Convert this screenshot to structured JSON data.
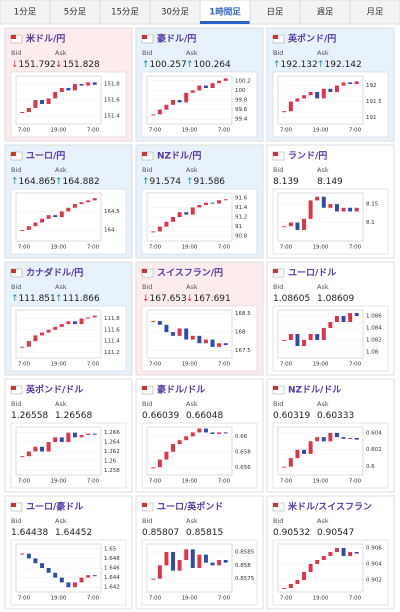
{
  "tabs": {
    "items": [
      "1分足",
      "5分足",
      "15分足",
      "30分足",
      "1時間足",
      "日足",
      "週足",
      "月足"
    ],
    "active": 4
  },
  "labels": {
    "bid": "Bid",
    "ask": "Ask"
  },
  "x_labels": [
    "7:00",
    "19:00",
    "7:00"
  ],
  "tiles": [
    {
      "name": "米ドル/円",
      "trend": "down",
      "arrow": "↓",
      "bid": 151.792,
      "ask": 151.828,
      "ylim": [
        151.3,
        151.9
      ],
      "yticks": [
        151.8,
        151.6,
        151.4
      ],
      "values": [
        151.45,
        151.5,
        151.6,
        151.55,
        151.62,
        151.7,
        151.75,
        151.72,
        151.8,
        151.78,
        151.82,
        151.79
      ]
    },
    {
      "name": "豪ドル/円",
      "trend": "up",
      "arrow": "↑",
      "bid": 100.257,
      "ask": 100.264,
      "ylim": [
        99.3,
        100.3
      ],
      "yticks": [
        100.2,
        100,
        99.8,
        99.6,
        99.4
      ],
      "values": [
        99.5,
        99.6,
        99.7,
        99.8,
        99.75,
        99.95,
        100.0,
        100.1,
        100.05,
        100.15,
        100.2,
        100.25
      ]
    },
    {
      "name": "英ポンド/円",
      "trend": "up",
      "arrow": "↑",
      "bid": 192.132,
      "ask": 192.142,
      "ylim": [
        190.8,
        192.3
      ],
      "yticks": [
        192,
        191.5,
        191
      ],
      "values": [
        191.2,
        191.5,
        191.6,
        191.7,
        191.8,
        191.6,
        191.9,
        191.8,
        192.0,
        192.1,
        192.05,
        192.13
      ]
    },
    {
      "name": "ユーロ/円",
      "trend": "up",
      "arrow": "↑",
      "bid": 164.865,
      "ask": 164.882,
      "ylim": [
        163.7,
        165.0
      ],
      "yticks": [
        164.5,
        164
      ],
      "values": [
        164.0,
        164.1,
        164.2,
        164.3,
        164.4,
        164.35,
        164.5,
        164.6,
        164.7,
        164.75,
        164.8,
        164.86
      ]
    },
    {
      "name": "NZドル/円",
      "trend": "up",
      "arrow": "↑",
      "bid": 91.574,
      "ask": 91.586,
      "ylim": [
        90.7,
        91.7
      ],
      "yticks": [
        91.6,
        91.4,
        91.2,
        91,
        90.8
      ],
      "values": [
        90.9,
        91.0,
        91.1,
        91.2,
        91.3,
        91.25,
        91.4,
        91.45,
        91.5,
        91.48,
        91.55,
        91.57
      ]
    },
    {
      "name": "ランド/円",
      "bid": 8.139,
      "ask": 8.149,
      "ylim": [
        8.05,
        8.18
      ],
      "yticks": [
        8.15,
        8.1
      ],
      "values": [
        8.09,
        8.1,
        8.08,
        8.11,
        8.16,
        8.17,
        8.14,
        8.15,
        8.13,
        8.14,
        8.13,
        8.14
      ]
    },
    {
      "name": "カナダドル/円",
      "trend": "up",
      "arrow": "↑",
      "bid": 111.851,
      "ask": 111.866,
      "ylim": [
        111.1,
        111.95
      ],
      "yticks": [
        111.8,
        111.6,
        111.4,
        111.2
      ],
      "values": [
        111.3,
        111.4,
        111.5,
        111.55,
        111.6,
        111.65,
        111.7,
        111.75,
        111.7,
        111.8,
        111.82,
        111.85
      ]
    },
    {
      "name": "スイスフラン/円",
      "trend": "down",
      "arrow": "↓",
      "bid": 167.653,
      "ask": 167.691,
      "ylim": [
        167.3,
        168.6
      ],
      "yticks": [
        168.5,
        168,
        167.5
      ],
      "values": [
        168.3,
        168.2,
        168.0,
        167.9,
        168.1,
        167.8,
        167.9,
        167.7,
        167.8,
        167.6,
        167.7,
        167.65
      ]
    },
    {
      "name": "ユーロ/ドル",
      "bid": 1.08605,
      "ask": 1.08609,
      "ylim": [
        1.079,
        1.087
      ],
      "yticks": [
        1.086,
        1.084,
        1.082,
        1.08
      ],
      "values": [
        1.082,
        1.083,
        1.081,
        1.082,
        1.083,
        1.082,
        1.084,
        1.085,
        1.086,
        1.085,
        1.0865,
        1.086
      ]
    },
    {
      "name": "英ポンド/ドル",
      "bid": 1.26558,
      "ask": 1.26568,
      "ylim": [
        1.257,
        1.2672
      ],
      "yticks": [
        1.266,
        1.264,
        1.262,
        1.26,
        1.258
      ],
      "values": [
        1.261,
        1.262,
        1.263,
        1.262,
        1.264,
        1.265,
        1.264,
        1.266,
        1.265,
        1.2655,
        1.2658,
        1.2656
      ]
    },
    {
      "name": "豪ドル/ドル",
      "bid": 0.66039,
      "ask": 0.66048,
      "ylim": [
        0.655,
        0.6612
      ],
      "yticks": [
        0.66,
        0.658,
        0.656
      ],
      "values": [
        0.656,
        0.657,
        0.658,
        0.659,
        0.6595,
        0.66,
        0.6605,
        0.661,
        0.6605,
        0.6603,
        0.6605,
        0.6604
      ]
    },
    {
      "name": "NZドル/ドル",
      "bid": 0.60319,
      "ask": 0.60333,
      "ylim": [
        0.599,
        0.6047
      ],
      "yticks": [
        0.604,
        0.602,
        0.6
      ],
      "values": [
        0.6,
        0.601,
        0.602,
        0.6015,
        0.603,
        0.6035,
        0.603,
        0.604,
        0.6035,
        0.6033,
        0.6034,
        0.6032
      ]
    },
    {
      "name": "ユーロ/豪ドル",
      "bid": 1.64438,
      "ask": 1.64452,
      "ylim": [
        1.641,
        1.651
      ],
      "yticks": [
        1.65,
        1.648,
        1.646,
        1.644,
        1.642
      ],
      "values": [
        1.649,
        1.648,
        1.647,
        1.646,
        1.645,
        1.644,
        1.643,
        1.642,
        1.643,
        1.644,
        1.6445,
        1.6444
      ]
    },
    {
      "name": "ユーロ/英ポンド",
      "bid": 0.85807,
      "ask": 0.85815,
      "ylim": [
        0.857,
        0.8588
      ],
      "yticks": [
        0.8585,
        0.858,
        0.8575
      ],
      "values": [
        0.8575,
        0.858,
        0.8585,
        0.8578,
        0.8582,
        0.8586,
        0.8579,
        0.8584,
        0.8581,
        0.858,
        0.8582,
        0.8581
      ]
    },
    {
      "name": "米ドル/スイスフラン",
      "bid": 0.90532,
      "ask": 0.90547,
      "ylim": [
        0.9005,
        0.9065
      ],
      "yticks": [
        0.906,
        0.904,
        0.902
      ],
      "values": [
        0.901,
        0.9015,
        0.902,
        0.903,
        0.904,
        0.9045,
        0.905,
        0.9055,
        0.906,
        0.905,
        0.9055,
        0.9053
      ]
    }
  ]
}
